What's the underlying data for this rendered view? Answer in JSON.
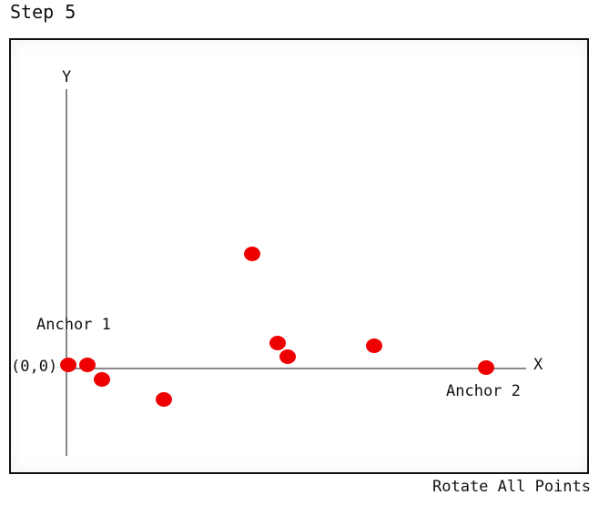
{
  "step_title": "Step 5",
  "plot": {
    "y_axis_label": "Y",
    "x_axis_label": "X",
    "origin_label": "(0,0)",
    "anchor1_label": "Anchor 1",
    "anchor2_label": "Anchor 2",
    "point_color": "#ee0000",
    "points": [
      {
        "name": "point-anchor-1"
      },
      {
        "name": "point"
      },
      {
        "name": "point"
      },
      {
        "name": "point"
      },
      {
        "name": "point"
      },
      {
        "name": "point"
      },
      {
        "name": "point"
      },
      {
        "name": "point"
      },
      {
        "name": "point-anchor-2"
      }
    ]
  },
  "footer": {
    "action_label": "Rotate All Points"
  }
}
